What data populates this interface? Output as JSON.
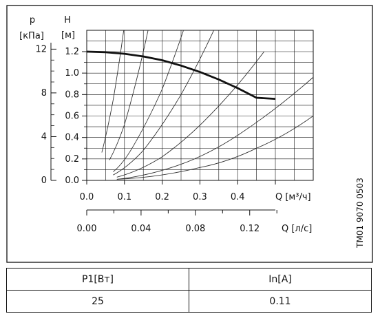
{
  "chart_data": {
    "type": "line",
    "x_axis": {
      "label": "Q [м³/ч]",
      "range": [
        0,
        0.5
      ],
      "ticks": [
        "0.0",
        "0.1",
        "0.2",
        "0.3",
        "0.4"
      ],
      "tick_values": [
        0,
        0.1,
        0.2,
        0.3,
        0.4
      ]
    },
    "x2_axis": {
      "label": "Q [л/с]",
      "ticks": [
        "0.00",
        "0.04",
        "0.08",
        "0.12"
      ],
      "tick_values": [
        0,
        0.04,
        0.08,
        0.12
      ]
    },
    "y_axis": {
      "name": "H",
      "label": "[м]",
      "range": [
        0,
        1.2
      ],
      "ticks": [
        "0.0",
        "0.2",
        "0.4",
        "0.6",
        "0.8",
        "1.0",
        "1.2"
      ],
      "tick_values": [
        0,
        0.2,
        0.4,
        0.6,
        0.8,
        1.0,
        1.2
      ]
    },
    "y2_axis": {
      "name": "p",
      "label": "[кПа]",
      "ticks": [
        "0",
        "4",
        "8",
        "12"
      ],
      "tick_values": [
        0,
        4,
        8,
        12
      ]
    },
    "grid": true,
    "series": [
      {
        "role": "pump-curve",
        "color": "#111111",
        "x": [
          0,
          0.05,
          0.1,
          0.15,
          0.2,
          0.25,
          0.3,
          0.35,
          0.4,
          0.45,
          0.5
        ],
        "y": [
          1.2,
          1.195,
          1.18,
          1.155,
          1.12,
          1.07,
          1.01,
          0.94,
          0.86,
          0.77,
          0.76
        ]
      },
      {
        "role": "system-curves",
        "color": "#333333",
        "curves": [
          {
            "x": [
              0.04,
              0.07,
              0.1,
              0.13
            ],
            "y": [
              0.26,
              0.75,
              1.45,
              2.3
            ]
          },
          {
            "x": [
              0.06,
              0.1,
              0.15,
              0.2
            ],
            "y": [
              0.19,
              0.52,
              1.2,
              2.05
            ]
          },
          {
            "x": [
              0.07,
              0.12,
              0.2,
              0.28
            ],
            "y": [
              0.08,
              0.3,
              0.85,
              1.65
            ]
          },
          {
            "x": [
              0.07,
              0.15,
              0.25,
              0.35
            ],
            "y": [
              0.05,
              0.28,
              0.8,
              1.5
            ]
          },
          {
            "x": [
              0.08,
              0.2,
              0.33,
              0.47
            ],
            "y": [
              0.03,
              0.22,
              0.62,
              1.2
            ]
          },
          {
            "x": [
              0.08,
              0.25,
              0.4,
              0.6
            ],
            "y": [
              0.01,
              0.15,
              0.42,
              0.96
            ]
          },
          {
            "x": [
              0.08,
              0.3,
              0.45,
              0.6
            ],
            "y": [
              0.01,
              0.12,
              0.3,
              0.6
            ]
          }
        ]
      }
    ],
    "side_label": "TM01 9070 0503"
  },
  "table": {
    "headers": [
      "P1[Вт]",
      "In[A]"
    ],
    "rows": [
      [
        "25",
        "0.11"
      ]
    ]
  }
}
